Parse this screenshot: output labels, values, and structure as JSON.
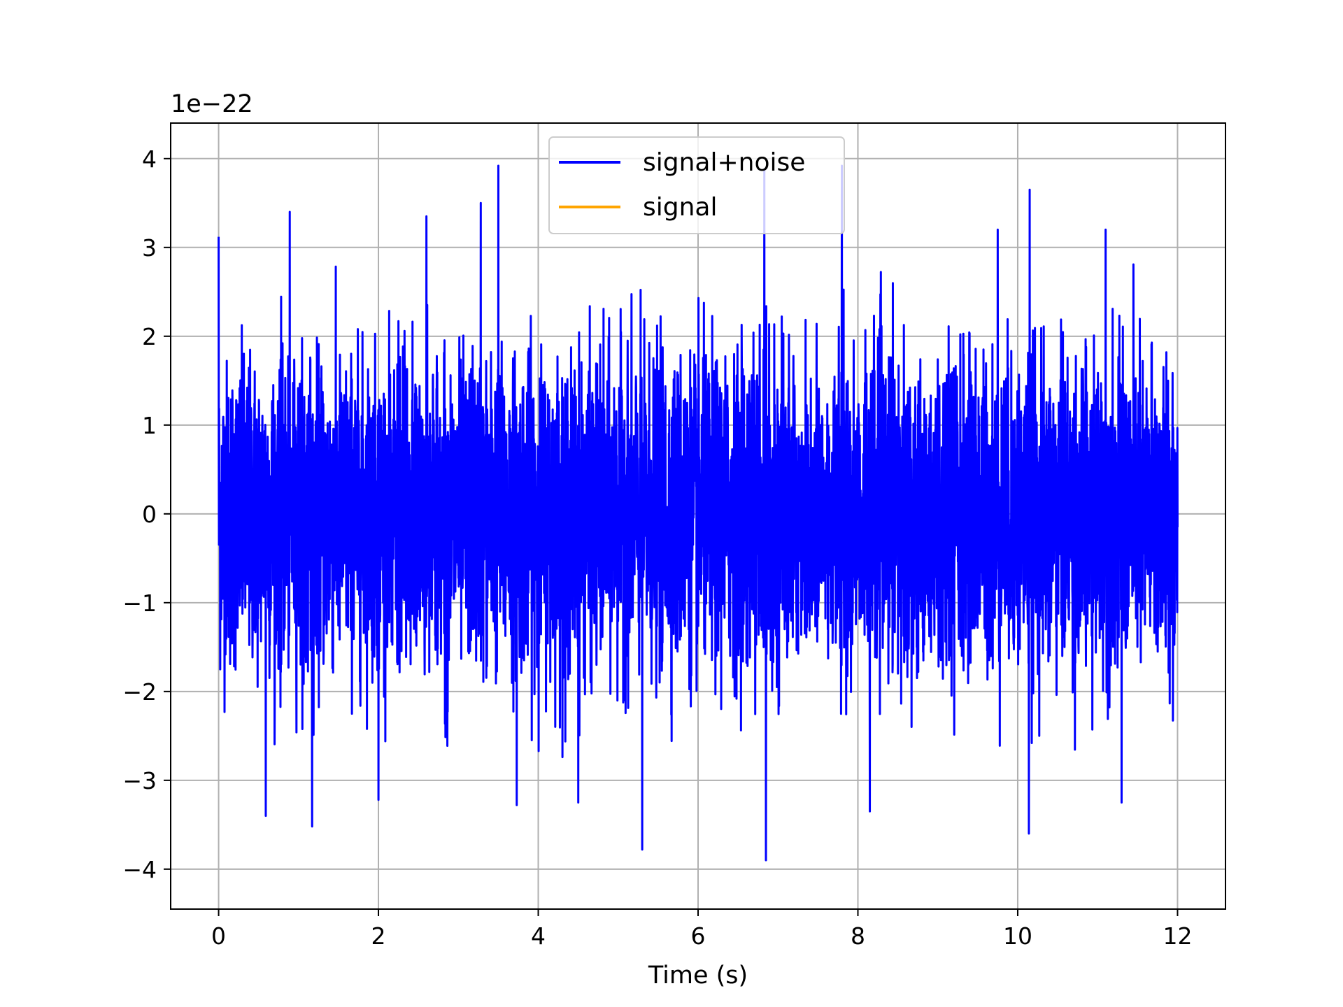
{
  "chart_data": {
    "type": "line",
    "title": "",
    "xlabel": "Time (s)",
    "ylabel": "",
    "offset_label": "1e−22",
    "xlim": [
      -0.6,
      12.6
    ],
    "ylim": [
      -4.45,
      4.4
    ],
    "xticks": [
      0,
      2,
      4,
      6,
      8,
      10,
      12
    ],
    "xtick_labels": [
      "0",
      "2",
      "4",
      "6",
      "8",
      "10",
      "12"
    ],
    "yticks": [
      -4,
      -3,
      -2,
      -1,
      0,
      1,
      2,
      3,
      4
    ],
    "ytick_labels": [
      "−4",
      "−3",
      "−2",
      "−1",
      "0",
      "1",
      "2",
      "3",
      "4"
    ],
    "grid": true,
    "legend_position": "top-center",
    "x_range": [
      0,
      12
    ],
    "series": [
      {
        "name": "signal+noise",
        "color": "#0000ff",
        "std": 0.85,
        "min": -3.9,
        "max": 3.95,
        "extremes": [
          {
            "x": 0.0,
            "y": 3.12
          },
          {
            "x": 0.89,
            "y": 3.4
          },
          {
            "x": 2.6,
            "y": 3.35
          },
          {
            "x": 3.28,
            "y": 3.5
          },
          {
            "x": 3.5,
            "y": 3.92
          },
          {
            "x": 6.83,
            "y": 3.88
          },
          {
            "x": 7.8,
            "y": 3.92
          },
          {
            "x": 10.15,
            "y": 3.65
          },
          {
            "x": 9.75,
            "y": 3.2
          },
          {
            "x": 11.1,
            "y": 3.2
          },
          {
            "x": 0.59,
            "y": -3.4
          },
          {
            "x": 1.17,
            "y": -3.52
          },
          {
            "x": 3.73,
            "y": -3.28
          },
          {
            "x": 5.3,
            "y": -3.78
          },
          {
            "x": 6.85,
            "y": -3.9
          },
          {
            "x": 8.15,
            "y": -3.35
          },
          {
            "x": 10.14,
            "y": -3.6
          },
          {
            "x": 2.0,
            "y": -3.22
          },
          {
            "x": 4.5,
            "y": -3.25
          },
          {
            "x": 11.3,
            "y": -3.25
          }
        ]
      },
      {
        "name": "signal",
        "color": "#ffa500",
        "values_constant": 0
      }
    ]
  }
}
